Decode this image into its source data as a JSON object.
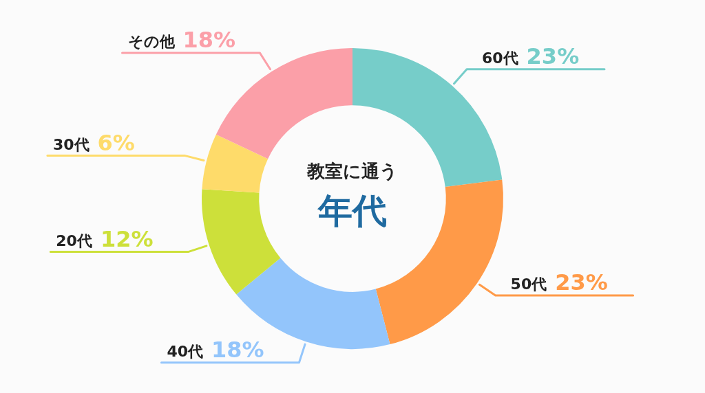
{
  "chart_data": {
    "type": "donut",
    "title": "教室に通う",
    "subtitle": "年代",
    "categories": [
      "60代",
      "50代",
      "40代",
      "20代",
      "30代",
      "その他"
    ],
    "values": [
      23,
      23,
      18,
      12,
      6,
      18
    ],
    "value_labels": [
      "23%",
      "23%",
      "18%",
      "12%",
      "6%",
      "18%"
    ],
    "colors": [
      "#76cdc9",
      "#ff9a48",
      "#93c5fb",
      "#cde03a",
      "#fedb6a",
      "#fb9fa8"
    ],
    "legend": false
  }
}
